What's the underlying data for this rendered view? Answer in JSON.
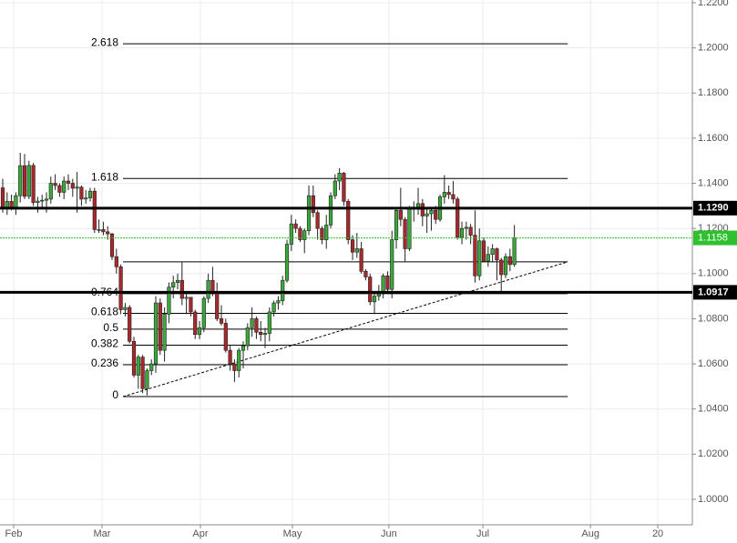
{
  "chart_data": {
    "type": "candlestick",
    "up_color": "#3aa83a",
    "down_color": "#a8282b",
    "grid": true,
    "ylim": [
      0.9887,
      1.2212
    ],
    "yticks": [
      {
        "value": 1.0,
        "label": "1.0000"
      },
      {
        "value": 1.02,
        "label": "1.0200"
      },
      {
        "value": 1.04,
        "label": "1.0400"
      },
      {
        "value": 1.06,
        "label": "1.0600"
      },
      {
        "value": 1.08,
        "label": "1.0800"
      },
      {
        "value": 1.1,
        "label": "1.1000"
      },
      {
        "value": 1.12,
        "label": "1.1200"
      },
      {
        "value": 1.14,
        "label": "1.1400"
      },
      {
        "value": 1.16,
        "label": "1.1600"
      },
      {
        "value": 1.18,
        "label": "1.1800"
      },
      {
        "value": 1.2,
        "label": "1.2000"
      },
      {
        "value": 1.22,
        "label": "1.2200"
      }
    ],
    "xlim": [
      -0.625,
      157.7
    ],
    "xticks": [
      {
        "value": 2.5,
        "label": "Feb"
      },
      {
        "value": 22.7,
        "label": "Mar"
      },
      {
        "value": 45.2,
        "label": "Apr"
      },
      {
        "value": 66.25,
        "label": "May"
      },
      {
        "value": 88.3,
        "label": "Jun"
      },
      {
        "value": 109.8,
        "label": "Jul"
      },
      {
        "value": 134.4,
        "label": "Aug"
      },
      {
        "value": 149.8,
        "label": "20"
      }
    ],
    "ohlc": [
      [
        1.138,
        1.142,
        1.127,
        1.129
      ],
      [
        1.129,
        1.136,
        1.126,
        1.132
      ],
      [
        1.132,
        1.135,
        1.128,
        1.129
      ],
      [
        1.129,
        1.136,
        1.126,
        1.1345
      ],
      [
        1.1345,
        1.1535,
        1.1315,
        1.1478
      ],
      [
        1.1478,
        1.153,
        1.133,
        1.1342
      ],
      [
        1.1342,
        1.15,
        1.133,
        1.1479
      ],
      [
        1.1479,
        1.149,
        1.13,
        1.1315
      ],
      [
        1.1315,
        1.134,
        1.127,
        1.1321
      ],
      [
        1.1321,
        1.135,
        1.129,
        1.1325
      ],
      [
        1.1325,
        1.136,
        1.127,
        1.133
      ],
      [
        1.133,
        1.143,
        1.131,
        1.14
      ],
      [
        1.14,
        1.144,
        1.137,
        1.139
      ],
      [
        1.139,
        1.14,
        1.134,
        1.136
      ],
      [
        1.136,
        1.143,
        1.133,
        1.141
      ],
      [
        1.141,
        1.144,
        1.137,
        1.14
      ],
      [
        1.14,
        1.142,
        1.134,
        1.1378
      ],
      [
        1.1378,
        1.145,
        1.127,
        1.1383
      ],
      [
        1.1383,
        1.139,
        1.13,
        1.133
      ],
      [
        1.133,
        1.137,
        1.131,
        1.1335
      ],
      [
        1.1335,
        1.138,
        1.132,
        1.1365
      ],
      [
        1.1365,
        1.138,
        1.118,
        1.1195
      ],
      [
        1.1195,
        1.124,
        1.118,
        1.1195
      ],
      [
        1.1195,
        1.123,
        1.117,
        1.1185
      ],
      [
        1.1185,
        1.121,
        1.115,
        1.1176
      ],
      [
        1.1176,
        1.118,
        1.106,
        1.1075
      ],
      [
        1.1075,
        1.111,
        1.1,
        1.103
      ],
      [
        1.103,
        1.104,
        1.082,
        1.084
      ],
      [
        1.084,
        1.087,
        1.081,
        1.085
      ],
      [
        1.085,
        1.086,
        1.069,
        1.07
      ],
      [
        1.07,
        1.072,
        1.054,
        1.055
      ],
      [
        1.055,
        1.064,
        1.049,
        1.063
      ],
      [
        1.063,
        1.064,
        1.047,
        1.049
      ],
      [
        1.049,
        1.058,
        1.046,
        1.057
      ],
      [
        1.057,
        1.062,
        1.055,
        1.06
      ],
      [
        1.06,
        1.09,
        1.056,
        1.087
      ],
      [
        1.087,
        1.089,
        1.064,
        1.066
      ],
      [
        1.066,
        1.085,
        1.061,
        1.082
      ],
      [
        1.082,
        1.096,
        1.078,
        1.094
      ],
      [
        1.094,
        1.099,
        1.089,
        1.096
      ],
      [
        1.096,
        1.1,
        1.093,
        1.097
      ],
      [
        1.097,
        1.105,
        1.086,
        1.089
      ],
      [
        1.089,
        1.092,
        1.082,
        1.0895
      ],
      [
        1.0895,
        1.0895,
        1.081,
        1.083
      ],
      [
        1.083,
        1.084,
        1.071,
        1.073
      ],
      [
        1.073,
        1.079,
        1.071,
        1.076
      ],
      [
        1.076,
        1.09,
        1.074,
        1.089
      ],
      [
        1.089,
        1.1,
        1.087,
        1.097
      ],
      [
        1.097,
        1.103,
        1.09,
        1.092
      ],
      [
        1.092,
        1.096,
        1.079,
        1.08
      ],
      [
        1.08,
        1.086,
        1.077,
        1.078
      ],
      [
        1.078,
        1.08,
        1.065,
        1.066
      ],
      [
        1.066,
        1.068,
        1.057,
        1.06
      ],
      [
        1.06,
        1.062,
        1.052,
        1.057
      ],
      [
        1.057,
        1.067,
        1.054,
        1.066
      ],
      [
        1.066,
        1.07,
        1.058,
        1.068
      ],
      [
        1.068,
        1.078,
        1.066,
        1.076
      ],
      [
        1.076,
        1.085,
        1.072,
        1.08
      ],
      [
        1.08,
        1.081,
        1.071,
        1.074
      ],
      [
        1.074,
        1.079,
        1.07,
        1.073
      ],
      [
        1.073,
        1.076,
        1.067,
        1.0735
      ],
      [
        1.0735,
        1.085,
        1.07,
        1.083
      ],
      [
        1.083,
        1.088,
        1.081,
        1.087
      ],
      [
        1.087,
        1.09,
        1.084,
        1.088
      ],
      [
        1.088,
        1.099,
        1.086,
        1.097
      ],
      [
        1.097,
        1.115,
        1.096,
        1.113
      ],
      [
        1.113,
        1.126,
        1.11,
        1.122
      ],
      [
        1.122,
        1.124,
        1.118,
        1.12
      ],
      [
        1.12,
        1.121,
        1.114,
        1.115
      ],
      [
        1.115,
        1.12,
        1.109,
        1.119
      ],
      [
        1.119,
        1.139,
        1.117,
        1.1345
      ],
      [
        1.1345,
        1.139,
        1.125,
        1.127
      ],
      [
        1.127,
        1.128,
        1.115,
        1.12
      ],
      [
        1.12,
        1.121,
        1.113,
        1.115
      ],
      [
        1.115,
        1.126,
        1.111,
        1.1215
      ],
      [
        1.1215,
        1.136,
        1.12,
        1.1345
      ],
      [
        1.1345,
        1.144,
        1.133,
        1.141
      ],
      [
        1.141,
        1.1467,
        1.137,
        1.1445
      ],
      [
        1.1445,
        1.145,
        1.13,
        1.132
      ],
      [
        1.132,
        1.133,
        1.113,
        1.115
      ],
      [
        1.115,
        1.117,
        1.106,
        1.1095
      ],
      [
        1.1095,
        1.118,
        1.107,
        1.111
      ],
      [
        1.111,
        1.114,
        1.1,
        1.101
      ],
      [
        1.101,
        1.102,
        1.097,
        1.0985
      ],
      [
        1.0985,
        1.1,
        1.086,
        1.0875
      ],
      [
        1.0875,
        1.092,
        1.082,
        1.09
      ],
      [
        1.09,
        1.095,
        1.088,
        1.091
      ],
      [
        1.091,
        1.1,
        1.089,
        1.099
      ],
      [
        1.099,
        1.101,
        1.092,
        1.093
      ],
      [
        1.093,
        1.119,
        1.089,
        1.115
      ],
      [
        1.115,
        1.129,
        1.111,
        1.128
      ],
      [
        1.128,
        1.138,
        1.121,
        1.124
      ],
      [
        1.124,
        1.125,
        1.105,
        1.111
      ],
      [
        1.111,
        1.13,
        1.11,
        1.129
      ],
      [
        1.129,
        1.132,
        1.123,
        1.1285
      ],
      [
        1.1285,
        1.138,
        1.126,
        1.131
      ],
      [
        1.131,
        1.133,
        1.121,
        1.1255
      ],
      [
        1.1255,
        1.129,
        1.118,
        1.1265
      ],
      [
        1.1265,
        1.129,
        1.119,
        1.128
      ],
      [
        1.128,
        1.13,
        1.122,
        1.124
      ],
      [
        1.124,
        1.135,
        1.123,
        1.134
      ],
      [
        1.134,
        1.1436,
        1.131,
        1.136
      ],
      [
        1.136,
        1.139,
        1.133,
        1.135
      ],
      [
        1.135,
        1.141,
        1.131,
        1.133
      ],
      [
        1.133,
        1.134,
        1.115,
        1.116
      ],
      [
        1.116,
        1.123,
        1.113,
        1.12
      ],
      [
        1.12,
        1.123,
        1.115,
        1.1205
      ],
      [
        1.1205,
        1.122,
        1.113,
        1.117
      ],
      [
        1.117,
        1.128,
        1.096,
        1.099
      ],
      [
        1.099,
        1.12,
        1.097,
        1.1145
      ],
      [
        1.1145,
        1.116,
        1.105,
        1.1055
      ],
      [
        1.1055,
        1.112,
        1.103,
        1.1085
      ],
      [
        1.1085,
        1.113,
        1.105,
        1.111
      ],
      [
        1.111,
        1.1115,
        1.097,
        1.106
      ],
      [
        1.106,
        1.107,
        1.092,
        1.0995
      ],
      [
        1.0995,
        1.109,
        1.098,
        1.1075
      ],
      [
        1.1075,
        1.111,
        1.101,
        1.104
      ],
      [
        1.104,
        1.1215,
        1.103,
        1.1158
      ]
    ],
    "fib_x": [
      27.5,
      129.2
    ],
    "fib_levels": [
      {
        "label": "2.618",
        "value": 1.2018
      },
      {
        "label": "1.618",
        "value": 1.1421
      },
      {
        "value": 1.1052
      },
      {
        "label": "0.764",
        "value": 1.0911
      },
      {
        "label": "0.618",
        "value": 1.0824
      },
      {
        "label": "0.5",
        "value": 1.0754
      },
      {
        "label": "0.382",
        "value": 1.0683
      },
      {
        "label": "0.236",
        "value": 1.0596
      },
      {
        "label": "0",
        "value": 1.0455
      }
    ],
    "trendline": {
      "x": [
        27.5,
        129.2
      ],
      "y": [
        1.0455,
        1.1052
      ]
    },
    "levels": [
      {
        "value": 1.129,
        "label": "1.1290",
        "color": "#000000"
      },
      {
        "value": 1.0917,
        "label": "1.0917",
        "color": "#000000"
      }
    ],
    "current_price": {
      "value": 1.1158,
      "label": "1.1158",
      "color": "#2fc02f"
    }
  }
}
